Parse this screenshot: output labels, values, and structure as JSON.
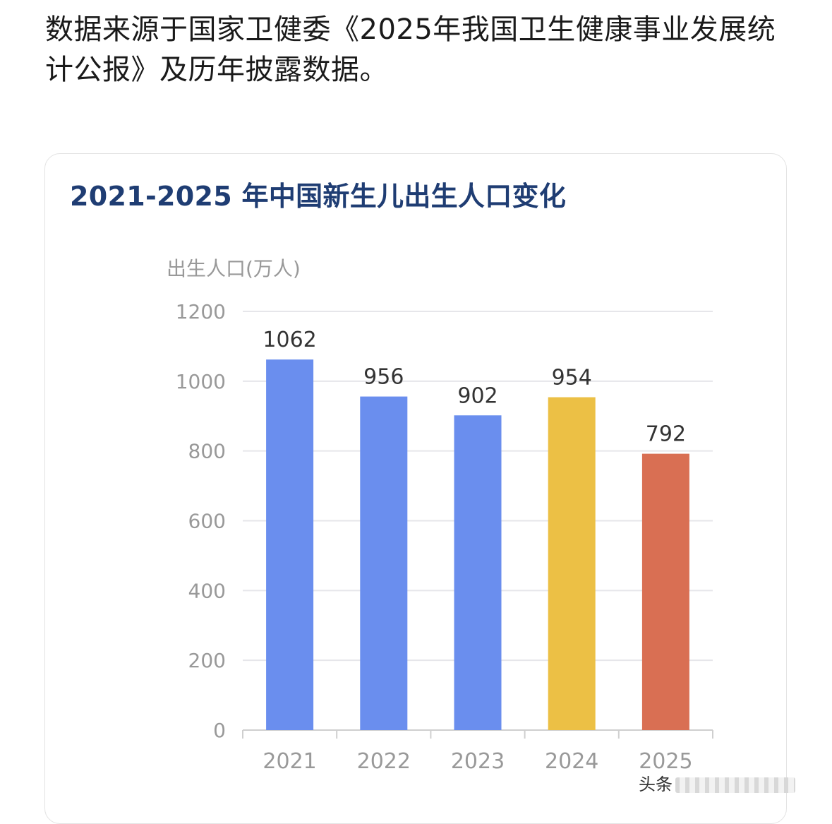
{
  "intro_text": "数据来源于国家卫健委《2025年我国卫生健康事业发展统计公报》及历年披露数据。",
  "watermark": "头条",
  "colors": {
    "blue": "#6a8eee",
    "yellow": "#ecc045",
    "orange": "#d96f53",
    "grid": "#e6e6ea",
    "axis_text": "#999999",
    "label_text": "#333333",
    "title": "#1f3d73"
  },
  "chart_data": {
    "type": "bar",
    "title": "2021-2025 年中国新生儿出生人口变化",
    "ylabel": "出生人口(万人)",
    "xlabel": "",
    "categories": [
      "2021",
      "2022",
      "2023",
      "2024",
      "2025"
    ],
    "values": [
      1062,
      956,
      902,
      954,
      792
    ],
    "bar_colors": [
      "#6a8eee",
      "#6a8eee",
      "#6a8eee",
      "#ecc045",
      "#d96f53"
    ],
    "data_labels": [
      "1062",
      "956",
      "902",
      "954",
      "792"
    ],
    "ylim": [
      0,
      1200
    ],
    "yticks": [
      0,
      200,
      400,
      600,
      800,
      1000,
      1200
    ],
    "grid": true,
    "legend": "none"
  }
}
